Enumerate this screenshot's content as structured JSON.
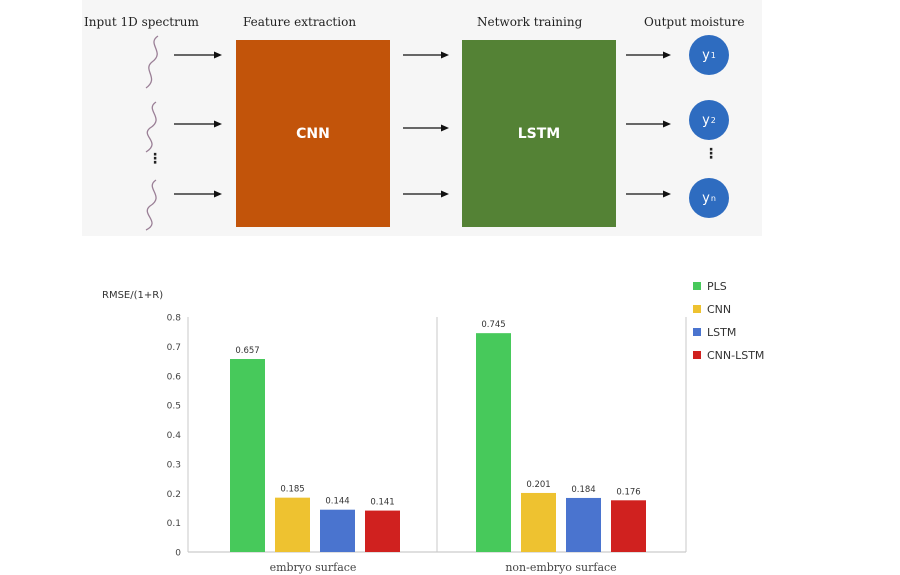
{
  "pipeline": {
    "stage_titles": {
      "input": "Input 1D spectrum",
      "feature": "Feature extraction",
      "training": "Network training",
      "output": "Output moisture"
    },
    "cnn_label": "CNN",
    "lstm_label": "LSTM",
    "outputs": [
      "y",
      "y",
      "y"
    ],
    "output_subscripts": [
      "1",
      "2",
      "n"
    ],
    "ellipsis": "⋮",
    "colors": {
      "cnn": "#c2540a",
      "lstm": "#548235",
      "output": "#2e6cc0"
    }
  },
  "chart_data": {
    "type": "bar",
    "ylabel": "RMSE/(1+R)",
    "ylim": [
      0,
      0.8
    ],
    "yticks": [
      "0",
      "0.1",
      "0.2",
      "0.3",
      "0.4",
      "0.5",
      "0.6",
      "0.7",
      "0.8"
    ],
    "categories": [
      "embryo surface",
      "non-embryo surface"
    ],
    "series": [
      {
        "name": "PLS",
        "color": "#47c95b",
        "values": [
          0.657,
          0.745
        ],
        "labels": [
          "0.657",
          "0.745"
        ]
      },
      {
        "name": "CNN",
        "color": "#eec230",
        "values": [
          0.185,
          0.201
        ],
        "labels": [
          "0.185",
          "0.201"
        ]
      },
      {
        "name": "LSTM",
        "color": "#4a74cf",
        "values": [
          0.144,
          0.184
        ],
        "labels": [
          "0.144",
          "0.184"
        ]
      },
      {
        "name": "CNN-LSTM",
        "color": "#d0211f",
        "values": [
          0.141,
          0.176
        ],
        "labels": [
          "0.141",
          "0.176"
        ]
      }
    ],
    "legend": "top-right"
  }
}
